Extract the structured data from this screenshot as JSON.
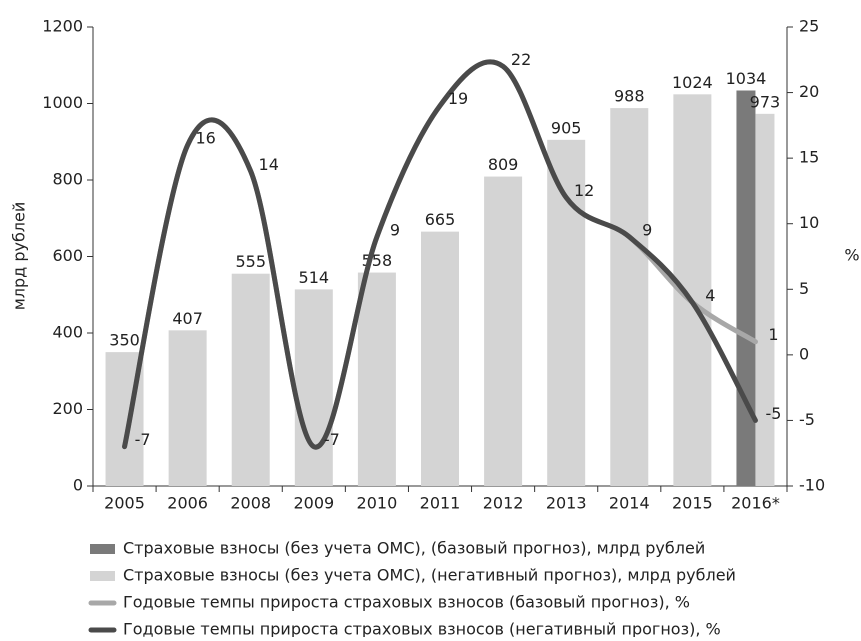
{
  "chart_data": {
    "type": "bar",
    "categories": [
      "2005",
      "2006",
      "2008",
      "2009",
      "2010",
      "2011",
      "2012",
      "2013",
      "2014",
      "2015",
      "2016*"
    ],
    "ylabel": "млрд рублей",
    "y2label": "%",
    "ylim": [
      0,
      1200
    ],
    "yticks": [
      0,
      200,
      400,
      600,
      800,
      1000,
      1200
    ],
    "y2lim": [
      -10,
      25
    ],
    "y2ticks": [
      -10,
      -5,
      0,
      5,
      10,
      15,
      20,
      25
    ],
    "series": [
      {
        "name": "Страховые взносы (без учета ОМС), (базовый прогноз), млрд рублей",
        "type": "bar",
        "color": "#7a7a7a",
        "values": [
          null,
          null,
          null,
          null,
          null,
          null,
          null,
          null,
          null,
          null,
          1034
        ]
      },
      {
        "name": "Страховые взносы (без учета ОМС), (негативный прогноз), млрд рублей",
        "type": "bar",
        "color": "#d4d4d4",
        "values": [
          350,
          407,
          555,
          514,
          558,
          665,
          809,
          905,
          988,
          1024,
          973
        ]
      },
      {
        "name": "Годовые темпы прироста страховых взносов (базовый прогноз), %",
        "type": "line",
        "axis": "y2",
        "color": "#a8a8a8",
        "values": [
          -7,
          16,
          14,
          -7,
          9,
          19,
          22,
          12,
          9,
          4,
          1
        ]
      },
      {
        "name": "Годовые темпы прироста страховых взносов (негативный прогноз), %",
        "type": "line",
        "axis": "y2",
        "color": "#4a4a4a",
        "values": [
          -7,
          16,
          14,
          -7,
          9,
          19,
          22,
          12,
          9,
          4,
          -5
        ]
      }
    ]
  }
}
